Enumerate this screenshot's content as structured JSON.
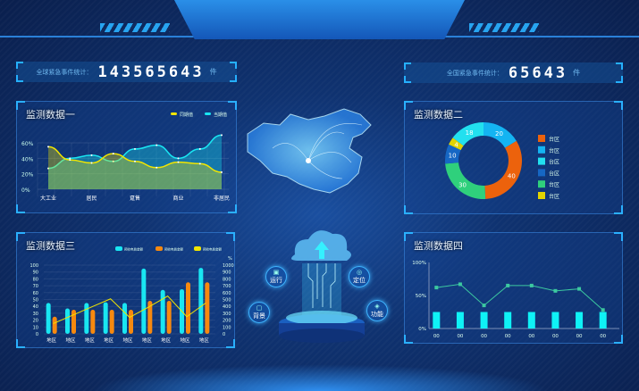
{
  "header": {},
  "stats": {
    "global": {
      "label": "全球紧急事件统计：",
      "value": "143565643",
      "unit": "件"
    },
    "national": {
      "label": "全国紧急事件统计：",
      "value": "65643",
      "unit": "件"
    }
  },
  "center": {
    "features": [
      "运行",
      "定位",
      "背景",
      "功能"
    ]
  },
  "colors": {
    "cyan": "#19e6f2",
    "yellow": "#f2e600",
    "orange": "#f7890f",
    "accent": "#25b0ff"
  },
  "chart_data": [
    {
      "id": "chart1",
      "type": "area",
      "title": "监测数据一",
      "categories": [
        "大工业",
        "居民",
        "趸售",
        "商业",
        "非居民"
      ],
      "x": [
        0,
        0.5,
        1,
        1.5,
        2,
        2.5,
        3,
        3.5,
        4
      ],
      "series": [
        {
          "name": "同期值",
          "color": "#f2e600",
          "values": [
            55,
            38,
            34,
            46,
            36,
            28,
            35,
            33,
            22
          ]
        },
        {
          "name": "当期值",
          "color": "#19e6f2",
          "values": [
            27,
            40,
            44,
            36,
            52,
            57,
            40,
            52,
            70
          ]
        }
      ],
      "yticks": [
        "0%",
        "20%",
        "40%",
        "60%"
      ],
      "ylim": [
        0,
        60
      ],
      "legend": "top-right",
      "grid": true
    },
    {
      "id": "chart2",
      "type": "pie",
      "title": "监测数据二",
      "slices": [
        {
          "label": "台区",
          "value": 20,
          "color": "#14b4f2"
        },
        {
          "label": "台区",
          "value": 40,
          "color": "#ec620c"
        },
        {
          "label": "台区",
          "value": 30,
          "color": "#2fd07c"
        },
        {
          "label": "台区",
          "value": 10,
          "color": "#1667c4"
        },
        {
          "label": "台区",
          "value": 4,
          "color": "#e2d400"
        },
        {
          "label": "台区",
          "value": 18,
          "color": "#22e0ef"
        }
      ],
      "legend_order": [
        1,
        0,
        5,
        3,
        2,
        4
      ],
      "legend": "right"
    },
    {
      "id": "chart3",
      "type": "bar",
      "title": "监测数据三",
      "categories": [
        "地区",
        "地区",
        "地区",
        "地区",
        "地区",
        "地区",
        "地区",
        "地区",
        "地区"
      ],
      "series": [
        {
          "name": "预收电费金额",
          "type": "bar",
          "color": "#19e6f2",
          "values": [
            45,
            37,
            45,
            46,
            45,
            95,
            64,
            65,
            96
          ]
        },
        {
          "name": "预收电费金额",
          "type": "bar",
          "color": "#f7890f",
          "values": [
            25,
            35,
            35,
            35,
            35,
            48,
            48,
            75,
            75
          ]
        },
        {
          "name": "预收电费金额",
          "type": "line",
          "axis": "right",
          "color": "#f2e600",
          "values": [
            150,
            270,
            390,
            510,
            240,
            390,
            550,
            250,
            450
          ]
        }
      ],
      "yleft": {
        "ticks": [
          0,
          10,
          20,
          30,
          40,
          50,
          60,
          70,
          80,
          90,
          100
        ],
        "ylim": [
          0,
          100
        ]
      },
      "yright": {
        "ticks": [
          0,
          100,
          200,
          300,
          400,
          500,
          600,
          700,
          800,
          900,
          1000
        ],
        "ylim": [
          0,
          1000
        ],
        "unit": "%"
      },
      "legend": "top-right",
      "grid": true
    },
    {
      "id": "chart4",
      "type": "bar",
      "title": "监测数据四",
      "categories": [
        "00",
        "00",
        "00",
        "00",
        "00",
        "00",
        "00",
        "00"
      ],
      "series": [
        {
          "type": "bar",
          "color": "#0ff2f6",
          "values": [
            25,
            25,
            25,
            25,
            25,
            25,
            25,
            25
          ]
        },
        {
          "type": "line",
          "color": "#3cc9a0",
          "values": [
            62,
            67,
            35,
            65,
            65,
            57,
            60,
            28
          ]
        }
      ],
      "yticks": [
        "0%",
        "50%",
        "100%"
      ],
      "ylim": [
        0,
        100
      ]
    }
  ]
}
